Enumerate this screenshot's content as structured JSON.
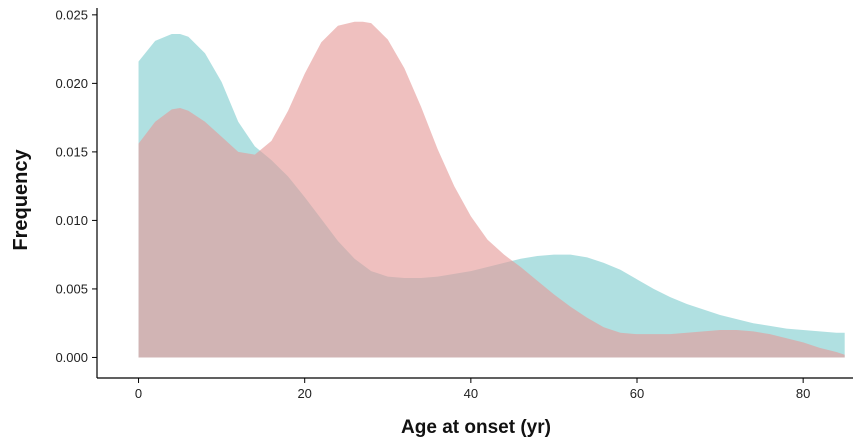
{
  "chart_data": {
    "type": "area",
    "title": "",
    "xlabel": "Age at onset (yr)",
    "ylabel": "Frequency",
    "xlim": [
      -5,
      86
    ],
    "ylim": [
      -0.0015,
      0.0255
    ],
    "xticks": [
      0,
      20,
      40,
      60,
      80
    ],
    "yticks": [
      0.0,
      0.005,
      0.01,
      0.015,
      0.02,
      0.025
    ],
    "xtick_labels": [
      "0",
      "20",
      "40",
      "60",
      "80"
    ],
    "ytick_labels": [
      "0.000",
      "0.005",
      "0.010",
      "0.015",
      "0.020",
      "0.025"
    ],
    "grid": false,
    "legend": "none",
    "series": [
      {
        "color": "#7fcdcf",
        "x": [
          0,
          2,
          4,
          5,
          6,
          8,
          10,
          12,
          14,
          16,
          18,
          20,
          22,
          24,
          26,
          28,
          30,
          32,
          34,
          36,
          38,
          40,
          42,
          44,
          46,
          48,
          50,
          52,
          54,
          56,
          58,
          60,
          62,
          64,
          66,
          68,
          70,
          72,
          74,
          76,
          78,
          80,
          82,
          84,
          85
        ],
        "y": [
          0.0216,
          0.0231,
          0.0236,
          0.0236,
          0.0234,
          0.0222,
          0.0201,
          0.0172,
          0.0154,
          0.0144,
          0.0132,
          0.0117,
          0.0101,
          0.0085,
          0.0072,
          0.0063,
          0.0059,
          0.0058,
          0.0058,
          0.0059,
          0.0061,
          0.0063,
          0.0066,
          0.0069,
          0.0072,
          0.0074,
          0.0075,
          0.0075,
          0.0073,
          0.0069,
          0.0064,
          0.0057,
          0.005,
          0.0044,
          0.0039,
          0.0035,
          0.0031,
          0.0028,
          0.0025,
          0.0023,
          0.0021,
          0.002,
          0.0019,
          0.0018,
          0.0018
        ]
      },
      {
        "color": "#e59a98",
        "x": [
          0,
          2,
          4,
          5,
          6,
          8,
          10,
          12,
          14,
          16,
          18,
          20,
          22,
          24,
          26,
          27,
          28,
          30,
          32,
          34,
          36,
          38,
          40,
          42,
          44,
          46,
          48,
          50,
          52,
          54,
          56,
          58,
          60,
          62,
          64,
          66,
          68,
          70,
          72,
          74,
          76,
          78,
          80,
          82,
          84,
          85
        ],
        "y": [
          0.0156,
          0.0172,
          0.0181,
          0.0182,
          0.018,
          0.0172,
          0.0161,
          0.015,
          0.0148,
          0.0158,
          0.018,
          0.0207,
          0.023,
          0.0242,
          0.0245,
          0.0245,
          0.0244,
          0.0232,
          0.0211,
          0.0183,
          0.0152,
          0.0125,
          0.0103,
          0.0086,
          0.0075,
          0.0066,
          0.0056,
          0.0046,
          0.0037,
          0.0029,
          0.0022,
          0.0018,
          0.0017,
          0.0017,
          0.0017,
          0.0018,
          0.0019,
          0.002,
          0.002,
          0.0019,
          0.0017,
          0.0014,
          0.0011,
          0.0007,
          0.0004,
          0.0002
        ]
      }
    ]
  }
}
